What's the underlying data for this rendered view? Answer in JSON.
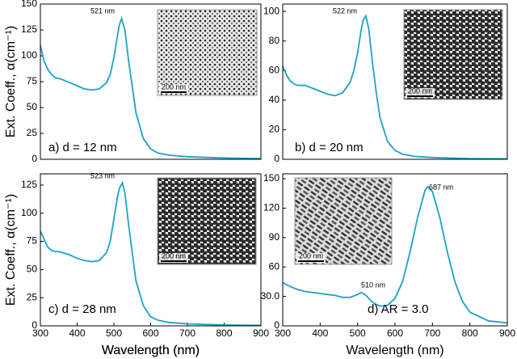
{
  "chart_data": [
    {
      "type": "line",
      "xlabel": "Wavelength (nm)",
      "ylabel": "Ext. Coeff., α(cm⁻¹)",
      "label": "a) d = 12 nm",
      "annotations": [
        "521 nm"
      ],
      "inset_label": "200 nm",
      "x": [
        300,
        310,
        320,
        330,
        340,
        350,
        360,
        380,
        400,
        420,
        440,
        460,
        480,
        490,
        500,
        510,
        515,
        521,
        530,
        540,
        550,
        560,
        580,
        600,
        620,
        650,
        700,
        750,
        800,
        850,
        900
      ],
      "series": [
        {
          "name": "d = 12 nm",
          "color": "#1ba3c6",
          "values": [
            110,
            95,
            87,
            82,
            79,
            78,
            77,
            74,
            71,
            68,
            67,
            68,
            74,
            82,
            98,
            120,
            130,
            136,
            125,
            95,
            70,
            45,
            20,
            10,
            6,
            4,
            2.5,
            1.8,
            1.2,
            1,
            0.8
          ]
        }
      ],
      "xlim": [
        300,
        900
      ],
      "ylim": [
        0,
        150
      ],
      "yticks": [
        0,
        25,
        50,
        75,
        100,
        125,
        150
      ]
    },
    {
      "type": "line",
      "label": "b) d = 20 nm",
      "annotations": [
        "522 nm"
      ],
      "inset_label": "200 nm",
      "x": [
        300,
        310,
        320,
        330,
        340,
        350,
        360,
        380,
        400,
        420,
        440,
        460,
        480,
        490,
        500,
        510,
        515,
        522,
        530,
        540,
        550,
        560,
        580,
        600,
        620,
        650,
        700,
        750,
        800,
        850,
        900
      ],
      "series": [
        {
          "name": "d = 20 nm",
          "color": "#1ba3c6",
          "values": [
            63,
            57,
            53,
            51,
            50,
            50,
            50,
            48,
            46,
            44,
            43,
            45,
            52,
            60,
            72,
            88,
            94,
            97,
            88,
            65,
            45,
            28,
            12,
            6,
            3.5,
            2,
            1.2,
            0.8,
            0.5,
            0.4,
            0.3
          ]
        }
      ],
      "xlim": [
        300,
        900
      ],
      "ylim": [
        0,
        105
      ],
      "yticks": [
        0,
        20,
        40,
        60,
        80,
        100
      ]
    },
    {
      "type": "line",
      "xlabel": "Wavelength (nm)",
      "ylabel": "Ext. Coeff., α(cm⁻¹)",
      "label": "c) d = 28 nm",
      "annotations": [
        "523 nm"
      ],
      "inset_label": "200 nm",
      "x": [
        300,
        310,
        320,
        330,
        340,
        350,
        360,
        380,
        400,
        420,
        440,
        460,
        480,
        490,
        500,
        510,
        515,
        523,
        530,
        540,
        550,
        560,
        580,
        600,
        620,
        650,
        700,
        750,
        800,
        850,
        900
      ],
      "series": [
        {
          "name": "d = 28 nm",
          "color": "#1ba3c6",
          "values": [
            84,
            77,
            70,
            67,
            66,
            66,
            65,
            63,
            60,
            58,
            57,
            58,
            65,
            75,
            95,
            115,
            122,
            127,
            118,
            90,
            65,
            40,
            18,
            8,
            5,
            3,
            1.8,
            1.2,
            0.8,
            0.6,
            0.5
          ]
        }
      ],
      "xlim": [
        300,
        900
      ],
      "ylim": [
        0,
        135
      ],
      "yticks": [
        0,
        25,
        50,
        75,
        100,
        125
      ],
      "xticks": [
        300,
        400,
        500,
        600,
        700,
        800,
        900
      ]
    },
    {
      "type": "line",
      "xlabel": "Wavelength (nm)",
      "label": "d) AR = 3.0",
      "annotations": [
        "510 nm",
        "687 nm"
      ],
      "inset_label": "200 nm",
      "x": [
        300,
        320,
        340,
        360,
        380,
        400,
        420,
        440,
        460,
        480,
        500,
        510,
        520,
        540,
        560,
        580,
        600,
        620,
        640,
        660,
        680,
        687,
        700,
        720,
        740,
        760,
        780,
        800,
        850,
        900
      ],
      "series": [
        {
          "name": "AR = 3.0",
          "color": "#1ba3c6",
          "values": [
            44,
            40,
            37,
            35,
            34,
            33,
            32,
            31,
            29,
            29,
            32,
            34,
            32,
            24,
            20,
            21,
            28,
            45,
            75,
            110,
            138,
            142,
            137,
            110,
            75,
            45,
            25,
            14,
            5,
            3
          ]
        }
      ],
      "xlim": [
        300,
        900
      ],
      "ylim": [
        0,
        155
      ],
      "yticks": [
        0,
        {
          "value": 30,
          "label": "30.0"
        },
        60,
        90,
        120,
        150
      ],
      "xticks": [
        300,
        400,
        500,
        600,
        700,
        800,
        900
      ]
    }
  ]
}
